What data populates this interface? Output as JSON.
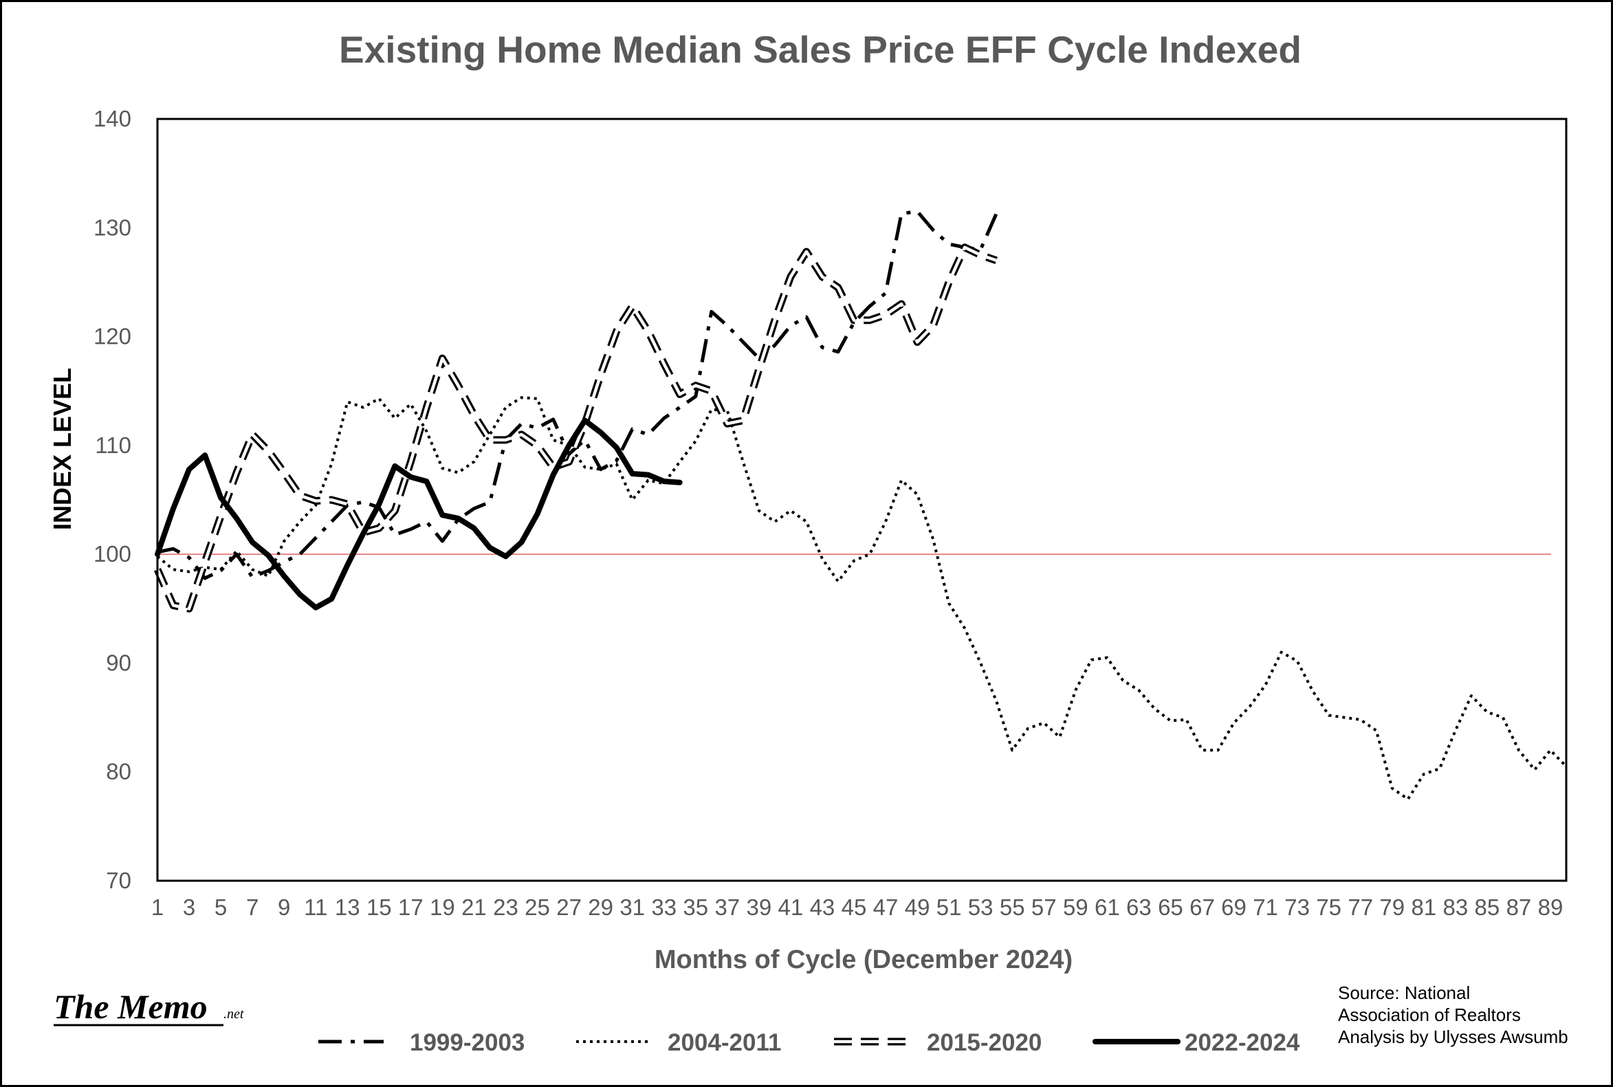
{
  "chart_data": {
    "type": "line",
    "title": "Existing Home Median Sales Price EFF Cycle Indexed",
    "xlabel": "Months of Cycle (December 2024)",
    "ylabel": "INDEX LEVEL",
    "ylim": [
      70,
      140
    ],
    "yticks": [
      70,
      80,
      90,
      100,
      110,
      120,
      130,
      140
    ],
    "xlim": [
      1,
      90
    ],
    "xtick_labels": [
      "1",
      "3",
      "5",
      "7",
      "9",
      "11",
      "13",
      "15",
      "17",
      "19",
      "21",
      "23",
      "25",
      "27",
      "29",
      "31",
      "33",
      "35",
      "37",
      "39",
      "41",
      "43",
      "45",
      "47",
      "49",
      "51",
      "53",
      "55",
      "57",
      "59",
      "61",
      "63",
      "65",
      "67",
      "69",
      "71",
      "73",
      "75",
      "77",
      "79",
      "81",
      "83",
      "85",
      "87",
      "89"
    ],
    "reference_line": {
      "y": 100,
      "color": "#e06060"
    },
    "legend_position": "bottom",
    "series": [
      {
        "name": "1999-2003",
        "style": "dash-dot",
        "x": [
          1,
          2,
          3,
          4,
          5,
          6,
          7,
          8,
          9,
          10,
          11,
          12,
          13,
          14,
          15,
          16,
          17,
          18,
          19,
          20,
          21,
          22,
          23,
          24,
          25,
          26,
          27,
          28,
          29,
          30,
          31,
          32,
          33,
          34,
          35,
          36,
          37,
          38,
          39,
          40,
          41,
          42,
          43,
          44,
          45,
          46,
          47,
          48,
          49,
          50,
          51,
          52,
          53,
          54
        ],
        "y": [
          100.2,
          100.5,
          99.7,
          97.8,
          98.5,
          100.0,
          97.9,
          98.5,
          99.3,
          100.0,
          101.5,
          103.0,
          104.5,
          104.8,
          104.3,
          101.8,
          102.3,
          103.0,
          101.2,
          103.2,
          104.2,
          104.8,
          110.5,
          112.0,
          111.6,
          112.4,
          109.2,
          110.5,
          107.8,
          108.6,
          111.5,
          111.0,
          112.5,
          113.5,
          114.5,
          122.3,
          121.0,
          119.5,
          118.0,
          119.2,
          121.0,
          121.8,
          119.0,
          118.6,
          121.3,
          122.8,
          124.0,
          131.3,
          131.5,
          129.8,
          128.5,
          128.2,
          128.0,
          131.3
        ]
      },
      {
        "name": "2004-2011",
        "style": "dotted",
        "x": [
          1,
          2,
          3,
          4,
          5,
          6,
          7,
          8,
          9,
          10,
          11,
          12,
          13,
          14,
          15,
          16,
          17,
          18,
          19,
          20,
          21,
          22,
          23,
          24,
          25,
          26,
          27,
          28,
          29,
          30,
          31,
          32,
          33,
          34,
          35,
          36,
          37,
          38,
          39,
          40,
          41,
          42,
          43,
          44,
          45,
          46,
          47,
          48,
          49,
          50,
          51,
          52,
          53,
          54,
          55,
          56,
          57,
          58,
          59,
          60,
          61,
          62,
          63,
          64,
          65,
          66,
          67,
          68,
          69,
          70,
          71,
          72,
          73,
          74,
          75,
          76,
          77,
          78,
          79,
          80,
          81,
          82,
          83,
          84,
          85,
          86,
          87,
          88,
          89,
          90
        ],
        "y": [
          99.8,
          98.6,
          98.4,
          98.8,
          98.6,
          100.3,
          98.6,
          98.0,
          101.2,
          103.0,
          104.5,
          108.3,
          114.0,
          113.5,
          114.3,
          112.5,
          113.8,
          111.3,
          107.9,
          107.5,
          108.5,
          111.0,
          113.5,
          114.4,
          114.3,
          110.5,
          110.0,
          108.0,
          107.8,
          108.3,
          105.0,
          106.8,
          106.5,
          108.5,
          110.4,
          113.3,
          113.2,
          108.5,
          104.0,
          103.0,
          104.0,
          103.0,
          99.6,
          97.5,
          99.4,
          100.0,
          103.0,
          106.8,
          105.5,
          101.4,
          95.5,
          93.2,
          90.0,
          86.5,
          82.0,
          84.0,
          84.5,
          83.2,
          87.5,
          90.3,
          90.5,
          88.4,
          87.5,
          85.8,
          84.7,
          84.8,
          82.0,
          82.0,
          84.5,
          86.0,
          88.0,
          91.0,
          90.2,
          87.4,
          85.2,
          85.0,
          84.8,
          83.8,
          78.5,
          77.5,
          79.8,
          80.3,
          83.8,
          87.0,
          85.5,
          85.0,
          82.0,
          80.2,
          82.0,
          80.5
        ]
      },
      {
        "name": "2015-2020",
        "style": "double-dash",
        "x": [
          1,
          2,
          3,
          4,
          5,
          6,
          7,
          8,
          9,
          10,
          11,
          12,
          13,
          14,
          15,
          16,
          17,
          18,
          19,
          20,
          21,
          22,
          23,
          24,
          25,
          26,
          27,
          28,
          29,
          30,
          31,
          32,
          33,
          34,
          35,
          36,
          37,
          38,
          39,
          40,
          41,
          42,
          43,
          44,
          45,
          46,
          47,
          48,
          49,
          50,
          51,
          52,
          53,
          54
        ],
        "y": [
          98.6,
          95.3,
          95.0,
          99.3,
          103.5,
          107.5,
          111.0,
          109.5,
          107.5,
          105.4,
          104.9,
          105.0,
          104.6,
          102.0,
          102.4,
          104.0,
          108.5,
          113.5,
          118.0,
          115.5,
          112.8,
          110.5,
          110.5,
          111.0,
          110.0,
          108.0,
          108.5,
          112.0,
          116.5,
          120.5,
          122.8,
          120.5,
          117.5,
          114.7,
          115.5,
          115.0,
          112.0,
          112.3,
          117.0,
          121.5,
          125.5,
          127.8,
          125.5,
          124.5,
          121.5,
          121.5,
          122.0,
          123.0,
          119.5,
          121.0,
          125.0,
          128.2,
          127.5,
          127.0
        ]
      },
      {
        "name": "2022-2024",
        "style": "solid-thick",
        "x": [
          1,
          2,
          3,
          4,
          5,
          6,
          7,
          8,
          9,
          10,
          11,
          12,
          13,
          14,
          15,
          16,
          17,
          18,
          19,
          20,
          21,
          22,
          23,
          24,
          25,
          26,
          27,
          28,
          29,
          30,
          31,
          32,
          33,
          34
        ],
        "y": [
          100.0,
          104.2,
          107.8,
          109.1,
          105.2,
          103.3,
          101.1,
          99.9,
          98.0,
          96.3,
          95.1,
          95.9,
          99.0,
          101.9,
          104.6,
          108.1,
          107.1,
          106.7,
          103.6,
          103.3,
          102.4,
          100.6,
          99.8,
          101.1,
          103.7,
          107.3,
          110.0,
          112.3,
          111.2,
          109.8,
          107.4,
          107.3,
          106.7,
          106.6
        ]
      }
    ]
  },
  "annotations": {
    "source_lines": [
      "Source: National",
      "Association of Realtors",
      "Analysis by Ulysses Awsumb"
    ],
    "brand": "The Memo",
    "brand_suffix": ".net"
  }
}
